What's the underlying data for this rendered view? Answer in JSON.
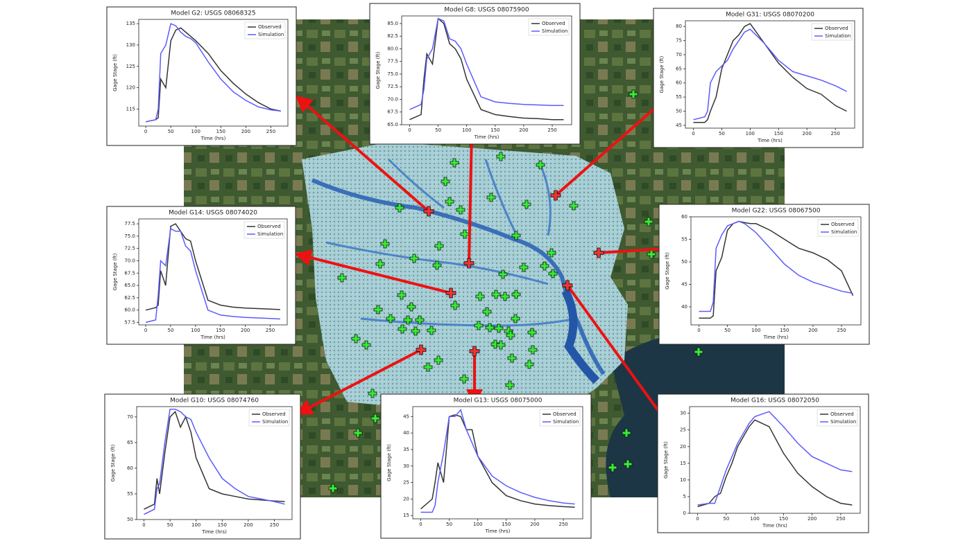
{
  "chart_data": [
    {
      "type": "line",
      "title": "Model G2: USGS 08068325",
      "xlabel": "Time (hrs)",
      "ylabel": "Gage Stage (ft)",
      "x": [
        0,
        20,
        25,
        30,
        40,
        50,
        60,
        70,
        80,
        90,
        100,
        125,
        150,
        175,
        200,
        225,
        250,
        270
      ],
      "series": [
        {
          "name": "Observed",
          "color": "#333333",
          "values": [
            112,
            112.5,
            113,
            122,
            120,
            131,
            133.5,
            134,
            133,
            132,
            131,
            128,
            124,
            121,
            118.5,
            116.5,
            115,
            114.5
          ]
        },
        {
          "name": "Simulation",
          "color": "#5a5aff",
          "values": [
            112,
            112.5,
            115,
            128,
            130,
            135,
            134.5,
            133,
            132,
            131.5,
            130.5,
            126,
            122,
            119,
            117,
            115.5,
            114.8,
            114.5
          ]
        }
      ],
      "xlim": [
        -14,
        284
      ],
      "xticks": [
        0,
        50,
        100,
        150,
        200,
        250
      ],
      "ylim": [
        111,
        136
      ],
      "yticks": [
        115,
        120,
        125,
        130,
        135
      ]
    },
    {
      "type": "line",
      "title": "Model G8: USGS 08075900",
      "xlabel": "Time (hrs)",
      "ylabel": "Gage Stage (ft)",
      "x": [
        0,
        20,
        25,
        30,
        40,
        50,
        60,
        70,
        80,
        90,
        100,
        125,
        150,
        175,
        200,
        225,
        250,
        270
      ],
      "series": [
        {
          "name": "Observed",
          "color": "#333333",
          "values": [
            66,
            67,
            74,
            79,
            77,
            86,
            85,
            81,
            80,
            78,
            74,
            68,
            67,
            66.6,
            66.3,
            66.2,
            66,
            66
          ]
        },
        {
          "name": "Simulation",
          "color": "#5a5aff",
          "values": [
            68,
            69,
            72,
            78,
            80,
            86,
            85.5,
            82,
            81.5,
            80,
            77,
            70.5,
            69.5,
            69.2,
            69,
            68.9,
            68.8,
            68.8
          ]
        }
      ],
      "xlim": [
        -14,
        284
      ],
      "xticks": [
        0,
        50,
        100,
        150,
        200,
        250
      ],
      "ylim": [
        65,
        86.5
      ],
      "yticks": [
        {
          "value": 65,
          "label": "65.0"
        },
        {
          "value": 67.5,
          "label": "67.5"
        },
        {
          "value": 70,
          "label": "70.0"
        },
        {
          "value": 72.5,
          "label": "72.5"
        },
        {
          "value": 75,
          "label": "75.0"
        },
        {
          "value": 77.5,
          "label": "77.5"
        },
        {
          "value": 80,
          "label": "80.0"
        },
        {
          "value": 82.5,
          "label": "82.5"
        },
        {
          "value": 85,
          "label": "85.0"
        }
      ]
    },
    {
      "type": "line",
      "title": "Model G31: USGS 08070200",
      "xlabel": "Time (hrs)",
      "ylabel": "Gage Stage (ft)",
      "x": [
        0,
        20,
        25,
        30,
        40,
        50,
        60,
        70,
        80,
        90,
        100,
        125,
        150,
        175,
        200,
        225,
        250,
        270
      ],
      "series": [
        {
          "name": "Observed",
          "color": "#333333",
          "values": [
            46,
            46,
            47,
            50,
            55,
            65,
            70,
            75,
            77,
            80,
            81,
            74,
            67,
            62,
            58,
            56,
            52,
            50
          ]
        },
        {
          "name": "Simulation",
          "color": "#5a5aff",
          "values": [
            47,
            48,
            50,
            60,
            64,
            66,
            68,
            72,
            75,
            78,
            79,
            74,
            68,
            64,
            62.5,
            61,
            59,
            57
          ]
        }
      ],
      "xlim": [
        -14,
        284
      ],
      "xticks": [
        0,
        50,
        100,
        150,
        200,
        250
      ],
      "ylim": [
        44,
        82
      ],
      "yticks": [
        45,
        50,
        55,
        60,
        65,
        70,
        75,
        80
      ]
    },
    {
      "type": "line",
      "title": "Model G14: USGS 08074020",
      "xlabel": "Time (hrs)",
      "ylabel": "Gage Stage (ft)",
      "x": [
        0,
        20,
        25,
        30,
        40,
        50,
        60,
        70,
        80,
        90,
        100,
        125,
        150,
        175,
        200,
        225,
        250,
        270
      ],
      "series": [
        {
          "name": "Observed",
          "color": "#333333",
          "values": [
            60,
            60.5,
            61,
            68,
            65,
            77,
            77.5,
            76,
            74.5,
            74,
            70,
            62,
            61,
            60.6,
            60.4,
            60.3,
            60.2,
            60.1
          ]
        },
        {
          "name": "Simulation",
          "color": "#5a5aff",
          "values": [
            57.5,
            58,
            63,
            70,
            69,
            76.5,
            76,
            76,
            73,
            72,
            68,
            60,
            59,
            58.7,
            58.5,
            58.4,
            58.3,
            58.2
          ]
        }
      ],
      "xlim": [
        -14,
        284
      ],
      "xticks": [
        0,
        50,
        100,
        150,
        200,
        250
      ],
      "ylim": [
        57,
        78.5
      ],
      "yticks": [
        {
          "value": 57.5,
          "label": "57.5"
        },
        {
          "value": 60,
          "label": "60.0"
        },
        {
          "value": 62.5,
          "label": "62.5"
        },
        {
          "value": 65,
          "label": "65.0"
        },
        {
          "value": 67.5,
          "label": "67.5"
        },
        {
          "value": 70,
          "label": "70.0"
        },
        {
          "value": 72.5,
          "label": "72.5"
        },
        {
          "value": 75,
          "label": "75.0"
        },
        {
          "value": 77.5,
          "label": "77.5"
        }
      ]
    },
    {
      "type": "line",
      "title": "Model G22: USGS 08067500",
      "xlabel": "Time (hrs)",
      "ylabel": "Gage Stage (ft)",
      "x": [
        0,
        20,
        25,
        30,
        40,
        50,
        60,
        70,
        80,
        90,
        100,
        125,
        150,
        175,
        200,
        225,
        250,
        270
      ],
      "series": [
        {
          "name": "Observed",
          "color": "#333333",
          "values": [
            37.5,
            37.5,
            38,
            48,
            51,
            57,
            58.5,
            59,
            58.7,
            58.5,
            58.5,
            57,
            55,
            53,
            52,
            50.5,
            48,
            42.5
          ]
        },
        {
          "name": "Simulation",
          "color": "#5a5aff",
          "values": [
            39,
            39,
            41,
            53,
            56,
            58,
            58.5,
            59,
            58.5,
            57.5,
            56.5,
            53,
            49.5,
            47,
            45.5,
            44.5,
            43.5,
            43
          ]
        }
      ],
      "xlim": [
        -14,
        284
      ],
      "xticks": [
        0,
        50,
        100,
        150,
        200,
        250
      ],
      "ylim": [
        36,
        60
      ],
      "yticks": [
        40,
        45,
        50,
        55,
        60
      ]
    },
    {
      "type": "line",
      "title": "Model G10: USGS 08074760",
      "xlabel": "Time (hrs)",
      "ylabel": "Gage Stage (ft)",
      "x": [
        0,
        20,
        25,
        30,
        40,
        50,
        60,
        70,
        80,
        90,
        100,
        125,
        150,
        175,
        200,
        225,
        250,
        270
      ],
      "series": [
        {
          "name": "Observed",
          "color": "#333333",
          "values": [
            52,
            53,
            58,
            55,
            63,
            70,
            71,
            68,
            70,
            67,
            62,
            56,
            55,
            54.5,
            54,
            53.8,
            53.6,
            53.5
          ]
        },
        {
          "name": "Simulation",
          "color": "#5a5aff",
          "values": [
            51,
            52,
            56,
            57,
            65,
            71.5,
            71.5,
            71,
            70,
            69.5,
            67,
            62,
            58,
            56,
            54.5,
            54,
            53.5,
            53
          ]
        }
      ],
      "xlim": [
        -14,
        284
      ],
      "xticks": [
        0,
        50,
        100,
        150,
        200,
        250
      ],
      "ylim": [
        50,
        72
      ],
      "yticks": [
        50,
        55,
        60,
        65,
        70
      ]
    },
    {
      "type": "line",
      "title": "Model G13: USGS 08075000",
      "xlabel": "Time (hrs)",
      "ylabel": "Gage Stage (ft)",
      "x": [
        0,
        20,
        25,
        30,
        40,
        50,
        60,
        70,
        80,
        90,
        100,
        125,
        150,
        175,
        200,
        225,
        250,
        270
      ],
      "series": [
        {
          "name": "Observed",
          "color": "#333333",
          "values": [
            17,
            20,
            25,
            31,
            25,
            45,
            45.5,
            45,
            41,
            41,
            33,
            25,
            21,
            19.5,
            18.5,
            18,
            17.7,
            17.5
          ]
        },
        {
          "name": "Simulation",
          "color": "#5a5aff",
          "values": [
            16,
            16,
            18,
            25,
            34,
            45,
            45,
            47,
            41,
            37,
            33,
            27,
            24,
            22,
            20.5,
            19.5,
            18.8,
            18.5
          ]
        }
      ],
      "xlim": [
        -14,
        284
      ],
      "xticks": [
        0,
        50,
        100,
        150,
        200,
        250
      ],
      "ylim": [
        14,
        48
      ],
      "yticks": [
        15,
        20,
        25,
        30,
        35,
        40,
        45
      ]
    },
    {
      "type": "line",
      "title": "Model G16: USGS 08072050",
      "xlabel": "Time (hrs)",
      "ylabel": "Gage Stage (ft)",
      "x": [
        0,
        20,
        25,
        30,
        40,
        50,
        60,
        70,
        80,
        90,
        100,
        125,
        150,
        175,
        200,
        225,
        250,
        270
      ],
      "series": [
        {
          "name": "Observed",
          "color": "#333333",
          "values": [
            2,
            3,
            4,
            5,
            6,
            11,
            15,
            20,
            23,
            26,
            28,
            26,
            18,
            12,
            8,
            5,
            3,
            2.5
          ]
        },
        {
          "name": "Simulation",
          "color": "#5a5aff",
          "values": [
            2.5,
            3,
            3,
            3,
            8,
            13,
            17,
            21,
            24,
            27,
            29,
            30.5,
            26,
            21,
            17,
            15,
            13,
            12.5
          ]
        }
      ],
      "xlim": [
        -14,
        284
      ],
      "xticks": [
        0,
        50,
        100,
        150,
        200,
        250
      ],
      "ylim": [
        0,
        32
      ],
      "yticks": [
        0,
        5,
        10,
        15,
        20,
        25,
        30
      ]
    }
  ]
}
